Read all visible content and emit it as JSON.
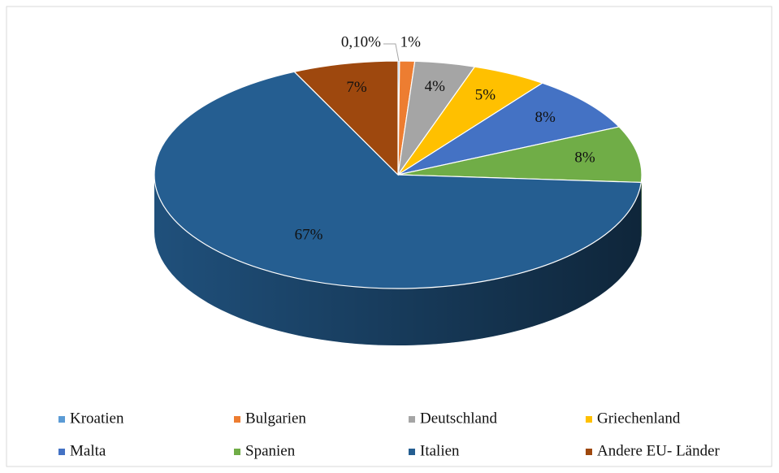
{
  "chart_data": {
    "type": "pie",
    "categories": [
      "Kroatien",
      "Bulgarien",
      "Deutschland",
      "Griechenland",
      "Malta",
      "Spanien",
      "Italien",
      "Andere EU- Länder"
    ],
    "values": [
      0.1,
      1,
      4,
      5,
      8,
      8,
      67,
      7
    ],
    "value_labels": [
      "0,10%",
      "1%",
      "4%",
      "5%",
      "8%",
      "8%",
      "67%",
      "7%"
    ],
    "colors": [
      "#5b9bd5",
      "#ed7d31",
      "#a5a5a5",
      "#ffc000",
      "#4472c4",
      "#70ad47",
      "#255e91",
      "#9e480e"
    ],
    "legend": "bottom"
  }
}
